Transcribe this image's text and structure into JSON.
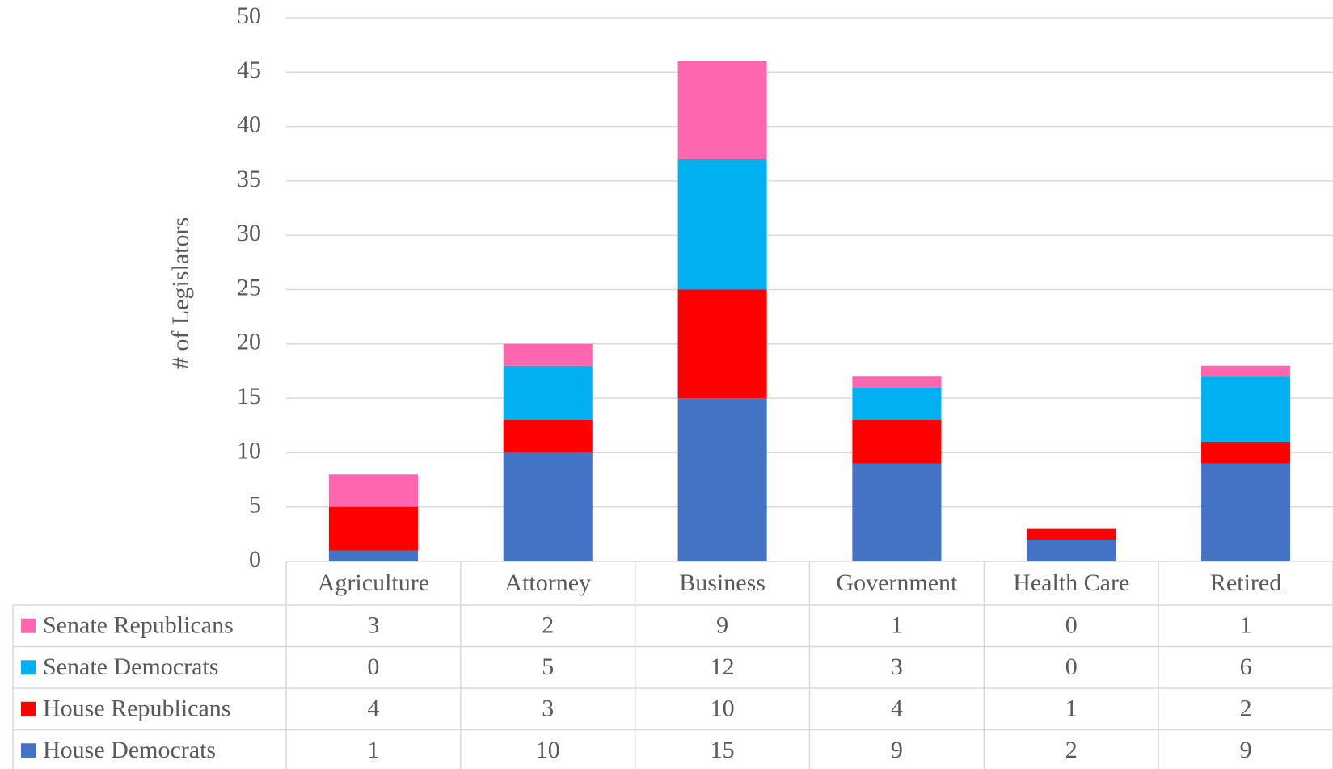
{
  "chart_data": {
    "type": "stacked_bar",
    "y_label": "# of Legislators",
    "categories": [
      "Agriculture",
      "Attorney",
      "Business",
      "Government",
      "Health Care",
      "Retired"
    ],
    "series": [
      {
        "name": "House Democrats",
        "color": "#4472c4",
        "values": [
          1,
          10,
          15,
          9,
          2,
          9
        ]
      },
      {
        "name": "House Republicans",
        "color": "#ff0000",
        "values": [
          4,
          3,
          10,
          4,
          1,
          2
        ]
      },
      {
        "name": "Senate Democrats",
        "color": "#00b0f0",
        "values": [
          0,
          5,
          12,
          3,
          0,
          6
        ]
      },
      {
        "name": "Senate Republicans",
        "color": "#ff66b0",
        "values": [
          3,
          2,
          9,
          1,
          0,
          1
        ]
      }
    ],
    "ylim": [
      0,
      50
    ],
    "yticks": [
      0,
      5,
      10,
      15,
      20,
      25,
      30,
      35,
      40,
      45,
      50
    ],
    "grid": true,
    "data_table": true
  }
}
